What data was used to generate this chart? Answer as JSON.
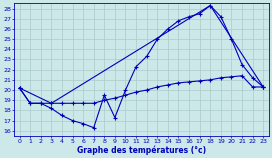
{
  "title": "Graphe des températures (°c)",
  "xlim": [
    -0.5,
    23.5
  ],
  "ylim": [
    15.5,
    28.5
  ],
  "xticks": [
    0,
    1,
    2,
    3,
    4,
    5,
    6,
    7,
    8,
    9,
    10,
    11,
    12,
    13,
    14,
    15,
    16,
    17,
    18,
    19,
    20,
    21,
    22,
    23
  ],
  "yticks": [
    16,
    17,
    18,
    19,
    20,
    21,
    22,
    23,
    24,
    25,
    26,
    27,
    28
  ],
  "bg_color": "#cce8e8",
  "grid_color": "#aacccc",
  "line_color": "#0000bb",
  "line1_x": [
    0,
    1,
    2,
    3,
    4,
    5,
    6,
    7,
    8,
    9,
    10,
    11,
    12,
    13,
    14,
    15,
    16,
    17,
    18,
    19,
    20,
    21,
    22,
    23
  ],
  "line1_y": [
    20.2,
    18.7,
    18.7,
    18.2,
    17.5,
    17.0,
    16.7,
    16.3,
    19.5,
    17.3,
    20.0,
    22.3,
    23.3,
    25.0,
    26.0,
    26.8,
    27.2,
    27.5,
    28.3,
    27.2,
    25.0,
    22.5,
    21.2,
    20.3
  ],
  "line2_x": [
    0,
    1,
    2,
    3,
    4,
    5,
    6,
    7,
    8,
    9,
    10,
    11,
    12,
    13,
    14,
    15,
    16,
    17,
    18,
    19,
    20,
    21,
    22,
    23
  ],
  "line2_y": [
    20.2,
    18.7,
    18.7,
    18.7,
    18.7,
    18.7,
    18.7,
    18.7,
    19.0,
    19.2,
    19.5,
    19.8,
    20.0,
    20.3,
    20.5,
    20.7,
    20.8,
    20.9,
    21.0,
    21.2,
    21.3,
    21.4,
    20.3,
    20.3
  ],
  "line3_x": [
    0,
    3,
    18,
    23
  ],
  "line3_y": [
    20.2,
    18.7,
    28.3,
    20.3
  ]
}
